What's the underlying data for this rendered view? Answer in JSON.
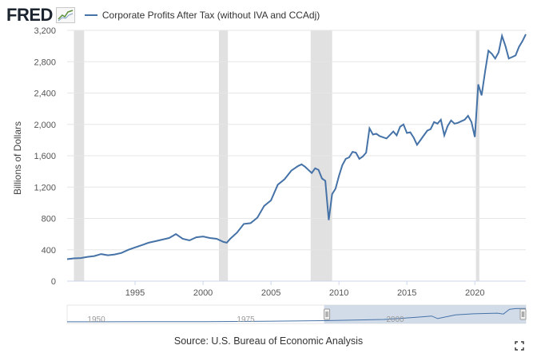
{
  "header": {
    "logo_text": "FRED",
    "logo_icon": "line-chart-icon",
    "legend_label": "Corporate Profits After Tax (without IVA and CCAdj)"
  },
  "source_text": "Source: U.S. Bureau of Economic Analysis",
  "colors": {
    "series": "#4572a7",
    "recession": "#e1e1e1",
    "navigator_fill": "#c3d0e2"
  },
  "navigator": {
    "ticks": [
      "1950",
      "1975",
      "2000"
    ]
  },
  "chart_data": {
    "type": "line",
    "title": "",
    "ylabel": "Billions of Dollars",
    "xlabel": "",
    "ylim": [
      0,
      3200
    ],
    "xlim": [
      1990.0,
      2023.75
    ],
    "y_ticks": [
      "0",
      "400",
      "800",
      "1,200",
      "1,600",
      "2,000",
      "2,400",
      "2,800",
      "3,200"
    ],
    "y_tick_values": [
      0,
      400,
      800,
      1200,
      1600,
      2000,
      2400,
      2800,
      3200
    ],
    "x_ticks": [
      "1995",
      "2000",
      "2005",
      "2010",
      "2015",
      "2020"
    ],
    "x_tick_values": [
      1995,
      2000,
      2005,
      2010,
      2015,
      2020
    ],
    "grid": "horizontal",
    "recessions": [
      [
        1990.5,
        1991.25
      ],
      [
        2001.17,
        2001.83
      ],
      [
        2007.92,
        2009.5
      ],
      [
        2020.08,
        2020.33
      ]
    ],
    "series": [
      {
        "name": "Corporate Profits After Tax (without IVA and CCAdj)",
        "x": [
          1990.0,
          1990.5,
          1991.0,
          1991.5,
          1992.0,
          1992.5,
          1993.0,
          1993.5,
          1994.0,
          1994.5,
          1995.0,
          1995.5,
          1996.0,
          1996.5,
          1997.0,
          1997.5,
          1997.75,
          1998.0,
          1998.5,
          1999.0,
          1999.5,
          2000.0,
          2000.5,
          2001.0,
          2001.5,
          2001.75,
          2002.0,
          2002.5,
          2003.0,
          2003.5,
          2004.0,
          2004.5,
          2005.0,
          2005.5,
          2006.0,
          2006.5,
          2007.0,
          2007.25,
          2007.5,
          2007.75,
          2008.0,
          2008.25,
          2008.5,
          2008.75,
          2009.0,
          2009.25,
          2009.5,
          2009.75,
          2010.0,
          2010.25,
          2010.5,
          2010.75,
          2011.0,
          2011.25,
          2011.5,
          2011.75,
          2012.0,
          2012.25,
          2012.5,
          2012.75,
          2013.0,
          2013.5,
          2014.0,
          2014.25,
          2014.5,
          2014.75,
          2015.0,
          2015.25,
          2015.5,
          2015.75,
          2016.0,
          2016.25,
          2016.5,
          2016.75,
          2017.0,
          2017.25,
          2017.5,
          2017.75,
          2018.0,
          2018.25,
          2018.5,
          2018.75,
          2019.0,
          2019.25,
          2019.5,
          2019.75,
          2020.0,
          2020.25,
          2020.5,
          2020.75,
          2021.0,
          2021.25,
          2021.5,
          2021.75,
          2022.0,
          2022.25,
          2022.5,
          2022.75,
          2023.0,
          2023.25,
          2023.5,
          2023.75
        ],
        "values": [
          280,
          290,
          295,
          310,
          320,
          345,
          330,
          340,
          360,
          400,
          430,
          460,
          490,
          510,
          530,
          550,
          575,
          600,
          540,
          520,
          560,
          570,
          550,
          540,
          500,
          490,
          540,
          620,
          730,
          740,
          810,
          960,
          1030,
          1230,
          1300,
          1410,
          1470,
          1490,
          1460,
          1420,
          1380,
          1440,
          1420,
          1310,
          1280,
          780,
          1110,
          1180,
          1340,
          1480,
          1560,
          1580,
          1650,
          1640,
          1560,
          1590,
          1640,
          1950,
          1870,
          1880,
          1850,
          1820,
          1910,
          1860,
          1970,
          2000,
          1890,
          1900,
          1830,
          1740,
          1800,
          1860,
          1920,
          1940,
          2030,
          2010,
          2060,
          1860,
          1980,
          2050,
          2010,
          2020,
          2040,
          2060,
          2110,
          2030,
          1840,
          2510,
          2370,
          2670,
          2940,
          2900,
          2840,
          2920,
          3130,
          3000,
          2840,
          2860,
          2880,
          2990,
          3060,
          3150
        ]
      }
    ]
  }
}
